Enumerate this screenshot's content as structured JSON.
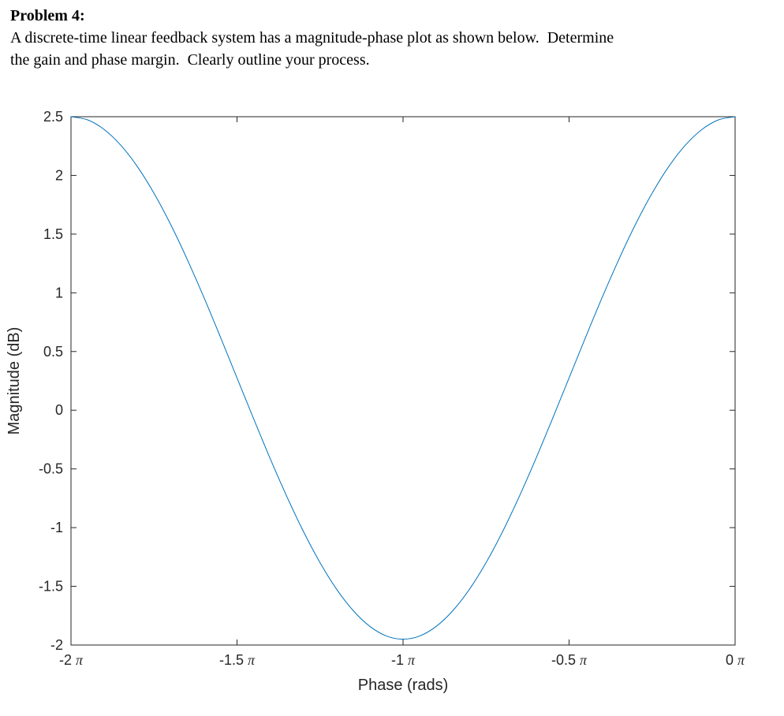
{
  "header": {
    "title": "Problem 4:",
    "lines": [
      "A discrete-time linear feedback system has a magnitude-phase plot as shown below.  Determine",
      "the gain and phase margin.  Clearly outline your process."
    ]
  },
  "chart_data": {
    "type": "line",
    "title": "",
    "xlabel": "Phase (rads)",
    "ylabel": "Magnitude (dB)",
    "xlim_pi": [
      -2,
      0
    ],
    "ylim": [
      -2,
      2.5
    ],
    "x_ticks": [
      {
        "value": -2,
        "label": "-2 π"
      },
      {
        "value": -1.5,
        "label": "-1.5 π"
      },
      {
        "value": -1,
        "label": "-1 π"
      },
      {
        "value": -0.5,
        "label": "-0.5 π"
      },
      {
        "value": 0,
        "label": "0 π"
      }
    ],
    "y_ticks": [
      -2,
      -1.5,
      -1,
      -0.5,
      0,
      0.5,
      1,
      1.5,
      2,
      2.5
    ],
    "grid": false,
    "legend": "none",
    "line_color": "#0072BD",
    "axis_color": "#262626",
    "series": [
      {
        "name": "magnitude-vs-phase",
        "x_pi": [
          -2,
          -1.95,
          -1.9,
          -1.85,
          -1.8,
          -1.75,
          -1.7,
          -1.65,
          -1.6,
          -1.55,
          -1.5,
          -1.45,
          -1.4,
          -1.35,
          -1.3,
          -1.25,
          -1.2,
          -1.15,
          -1.1,
          -1.05,
          -1,
          -0.95,
          -0.9,
          -0.85,
          -0.8,
          -0.75,
          -0.7,
          -0.65,
          -0.6,
          -0.55,
          -0.5,
          -0.45,
          -0.4,
          -0.35,
          -0.3,
          -0.25,
          -0.2,
          -0.15,
          -0.1,
          -0.05,
          0
        ],
        "y": [
          2.5,
          2.473,
          2.391,
          2.257,
          2.075,
          1.848,
          1.583,
          1.285,
          0.963,
          0.623,
          0.275,
          -0.073,
          -0.413,
          -0.735,
          -1.033,
          -1.298,
          -1.525,
          -1.707,
          -1.841,
          -1.923,
          -1.95,
          -1.923,
          -1.841,
          -1.707,
          -1.525,
          -1.298,
          -1.033,
          -0.735,
          -0.413,
          -0.073,
          0.275,
          0.623,
          0.963,
          1.285,
          1.583,
          1.848,
          2.075,
          2.257,
          2.391,
          2.473,
          2.5
        ]
      }
    ]
  }
}
